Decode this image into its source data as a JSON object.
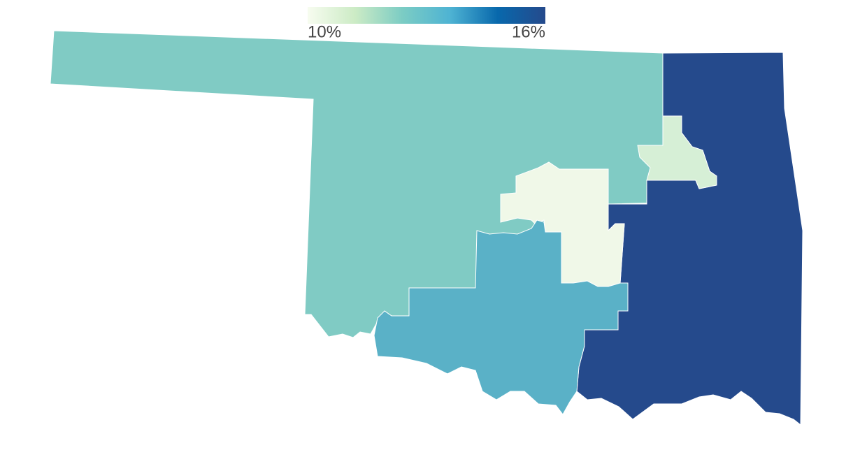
{
  "map": {
    "type": "choropleth",
    "legend": {
      "ticks": [
        {
          "value": 10,
          "label": "10%"
        },
        {
          "value": 16,
          "label": "16%"
        }
      ],
      "colors": [
        "#f7fcf0",
        "#ccebc5",
        "#7bccc4",
        "#4eb3d3",
        "#0868ac",
        "#254a8c"
      ]
    },
    "regions": [
      {
        "value": 12.3,
        "color": "#80cbc4"
      },
      {
        "value": 16,
        "color": "#254a8c"
      },
      {
        "value": 10.5,
        "color": "#d6efd6"
      },
      {
        "value": 10.1,
        "color": "#f0f8e8"
      },
      {
        "value": 13.5,
        "color": "#5ab1c7"
      }
    ]
  }
}
